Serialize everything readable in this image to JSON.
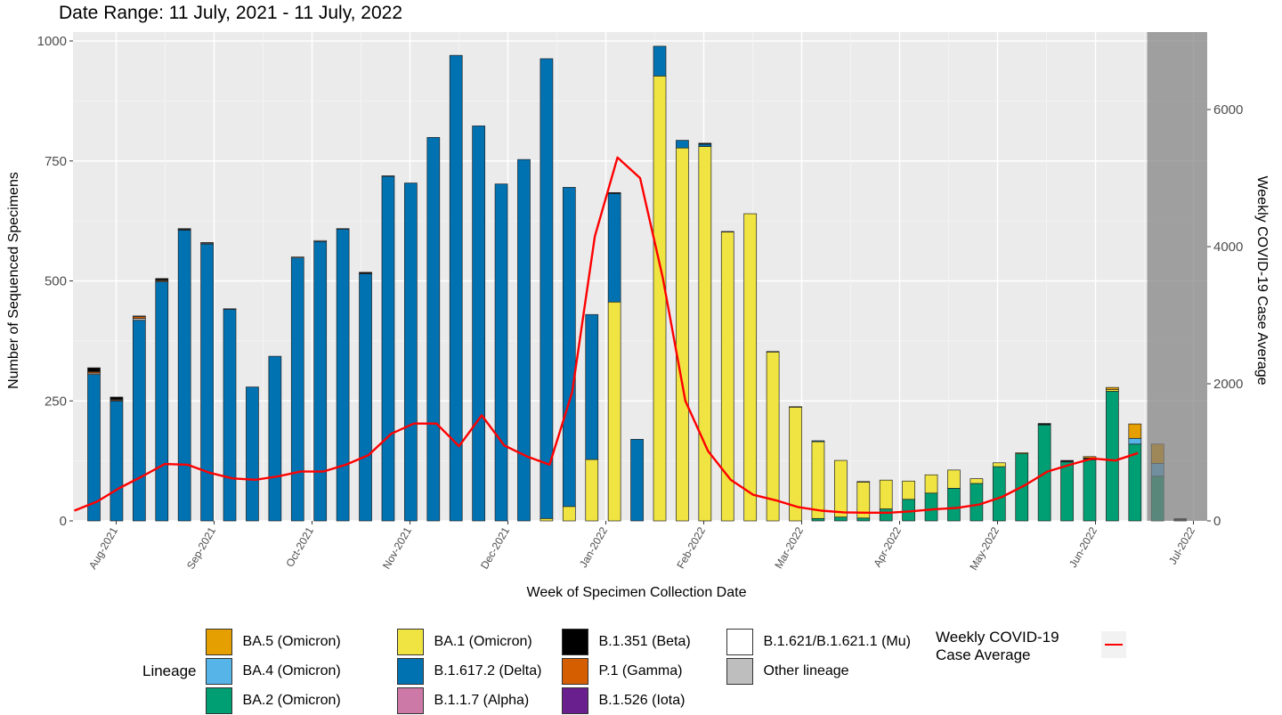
{
  "title": "Date Range: 11 July, 2021 - 11 July, 2022",
  "legend": {
    "title": "Lineage",
    "items": [
      {
        "name": "BA.5 (Omicron)",
        "color": "#E69F00"
      },
      {
        "name": "BA.1 (Omicron)",
        "color": "#F0E442"
      },
      {
        "name": "B.1.351 (Beta)",
        "color": "#000000"
      },
      {
        "name": "B.1.621/B.1.621.1 (Mu)",
        "color": "#FFFFFF"
      },
      {
        "name": "BA.4 (Omicron)",
        "color": "#56B4E9"
      },
      {
        "name": "B.1.617.2 (Delta)",
        "color": "#0072B2"
      },
      {
        "name": "P.1 (Gamma)",
        "color": "#D55E00"
      },
      {
        "name": "Other lineage",
        "color": "#BEBEBE"
      },
      {
        "name": "BA.2 (Omicron)",
        "color": "#009E73"
      },
      {
        "name": "B.1.1.7 (Alpha)",
        "color": "#CC79A7"
      },
      {
        "name": "B.1.526 (Iota)",
        "color": "#6A1F8E"
      }
    ],
    "line_label": "Weekly COVID-19\nCase Average",
    "line_color": "#FF0000"
  },
  "chart_data": {
    "type": "bar",
    "xlabel": "Week of Specimen Collection Date",
    "ylabel": "Number of Sequenced Specimens",
    "y2label": "Weekly COVID-19 Case Average",
    "ylim": [
      0,
      1000
    ],
    "y2lim": [
      0,
      7000
    ],
    "yticks": [
      0,
      250,
      500,
      750,
      1000
    ],
    "y2ticks": [
      0,
      2000,
      4000,
      6000
    ],
    "xticks": [
      "Aug-2021",
      "Sep-2021",
      "Oct-2021",
      "Nov-2021",
      "Dec-2021",
      "Jan-2022",
      "Feb-2022",
      "Mar-2022",
      "Apr-2022",
      "May-2022",
      "Jun-2022",
      "Jul-2022"
    ],
    "shaded_region": {
      "from_week": 47
    },
    "weeks": [
      {
        "BA.2": 0,
        "BA.1": 0,
        "Delta": 305,
        "Other": 3,
        "Gamma": 3,
        "Beta": 8
      },
      {
        "BA.2": 0,
        "BA.1": 0,
        "Delta": 250,
        "Other": 1,
        "Gamma": 2,
        "Beta": 5
      },
      {
        "BA.2": 0,
        "BA.1": 0,
        "Delta": 418,
        "Other": 4,
        "Gamma": 4,
        "Beta": 1
      },
      {
        "BA.2": 0,
        "BA.1": 0,
        "Delta": 498,
        "Other": 2,
        "Gamma": 2,
        "Beta": 3
      },
      {
        "BA.2": 0,
        "BA.1": 0,
        "Delta": 606,
        "Other": 1,
        "Gamma": 1,
        "Beta": 1
      },
      {
        "BA.2": 0,
        "BA.1": 0,
        "Delta": 577,
        "Other": 2,
        "Gamma": 1,
        "Beta": 0
      },
      {
        "BA.2": 0,
        "BA.1": 0,
        "Delta": 441,
        "Other": 1,
        "Gamma": 0,
        "Beta": 0
      },
      {
        "BA.2": 0,
        "BA.1": 0,
        "Delta": 279,
        "Other": 0,
        "Gamma": 0,
        "Beta": 0
      },
      {
        "BA.2": 0,
        "BA.1": 0,
        "Delta": 343,
        "Other": 0,
        "Gamma": 0,
        "Beta": 0
      },
      {
        "BA.2": 0,
        "BA.1": 0,
        "Delta": 548,
        "Other": 2,
        "Gamma": 0,
        "Beta": 0
      },
      {
        "BA.2": 0,
        "BA.1": 0,
        "Delta": 582,
        "Other": 2,
        "Gamma": 0,
        "Beta": 0
      },
      {
        "BA.2": 0,
        "BA.1": 0,
        "Delta": 608,
        "Other": 1,
        "Gamma": 0,
        "Beta": 0
      },
      {
        "BA.2": 0,
        "BA.1": 0,
        "Delta": 515,
        "Other": 1,
        "Gamma": 0,
        "Beta": 2
      },
      {
        "BA.2": 0,
        "BA.1": 0,
        "Delta": 718,
        "Other": 1,
        "Gamma": 0,
        "Beta": 0
      },
      {
        "BA.2": 0,
        "BA.1": 0,
        "Delta": 704,
        "Other": 0,
        "Gamma": 0,
        "Beta": 0
      },
      {
        "BA.2": 0,
        "BA.1": 0,
        "Delta": 799,
        "Other": 0,
        "Gamma": 0,
        "Beta": 0
      },
      {
        "BA.2": 0,
        "BA.1": 0,
        "Delta": 970,
        "Other": 0,
        "Gamma": 0,
        "Beta": 0
      },
      {
        "BA.2": 0,
        "BA.1": 0,
        "Delta": 823,
        "Other": 0,
        "Gamma": 0,
        "Beta": 0
      },
      {
        "BA.2": 0,
        "BA.1": 0,
        "Delta": 702,
        "Other": 0,
        "Gamma": 0,
        "Beta": 0
      },
      {
        "BA.2": 0,
        "BA.1": 0,
        "Delta": 753,
        "Other": 0,
        "Gamma": 0,
        "Beta": 0
      },
      {
        "BA.2": 0,
        "BA.1": 5,
        "Delta": 958,
        "Other": 0,
        "Gamma": 0,
        "Beta": 0
      },
      {
        "BA.2": 0,
        "BA.1": 30,
        "Delta": 665,
        "Other": 0,
        "Gamma": 0,
        "Beta": 0
      },
      {
        "BA.2": 0,
        "BA.1": 128,
        "Delta": 302,
        "Other": 0,
        "Gamma": 0,
        "Beta": 0
      },
      {
        "BA.2": 0,
        "BA.1": 456,
        "Delta": 226,
        "Other": 0,
        "Gamma": 0,
        "Beta": 2
      },
      {
        "BA.2": 0,
        "BA.1": 0,
        "Delta": 170,
        "Other": 0,
        "Gamma": 0,
        "Beta": 0
      },
      {
        "BA.2": 0,
        "BA.1": 927,
        "Delta": 62,
        "Other": 0,
        "Gamma": 0,
        "Beta": 0
      },
      {
        "BA.2": 0,
        "BA.1": 777,
        "Delta": 16,
        "Other": 0,
        "Gamma": 0,
        "Beta": 0
      },
      {
        "BA.2": 0,
        "BA.1": 780,
        "Delta": 5,
        "Other": 0,
        "Gamma": 0,
        "Beta": 2
      },
      {
        "BA.2": 0,
        "BA.1": 602,
        "Delta": 1,
        "Other": 0,
        "Gamma": 0,
        "Beta": 0
      },
      {
        "BA.2": 0,
        "BA.1": 640,
        "Delta": 0,
        "Other": 0,
        "Gamma": 0,
        "Beta": 0
      },
      {
        "BA.2": 0,
        "BA.1": 352,
        "Delta": 1,
        "Other": 0,
        "Gamma": 0,
        "Beta": 0
      },
      {
        "BA.2": 0,
        "BA.1": 237,
        "Delta": 1,
        "Other": 0,
        "Gamma": 0,
        "Beta": 0
      },
      {
        "BA.2": 5,
        "BA.1": 160,
        "Delta": 2,
        "Other": 0,
        "Gamma": 0,
        "Beta": 0
      },
      {
        "BA.2": 8,
        "BA.1": 118,
        "Delta": 0,
        "Other": 0,
        "Gamma": 0,
        "Beta": 0
      },
      {
        "BA.2": 6,
        "BA.1": 75,
        "Delta": 0,
        "Other": 0,
        "Gamma": 0,
        "Beta": 1
      },
      {
        "BA.2": 25,
        "BA.1": 60,
        "Delta": 0,
        "Other": 0,
        "Gamma": 0,
        "Beta": 0
      },
      {
        "BA.2": 45,
        "BA.1": 38,
        "Delta": 0,
        "Other": 0,
        "Gamma": 0,
        "Beta": 0
      },
      {
        "BA.2": 58,
        "BA.1": 38,
        "Delta": 0,
        "Other": 0,
        "Gamma": 0,
        "Beta": 0
      },
      {
        "BA.2": 68,
        "BA.1": 38,
        "Delta": 0,
        "Other": 0,
        "Gamma": 0,
        "Beta": 0
      },
      {
        "BA.2": 78,
        "BA.1": 10,
        "Delta": 0,
        "Other": 0,
        "Gamma": 0,
        "Beta": 0
      },
      {
        "BA.2": 113,
        "BA.1": 8,
        "Delta": 0,
        "Other": 0,
        "Gamma": 0,
        "Beta": 0
      },
      {
        "BA.2": 140,
        "BA.1": 2,
        "Delta": 0,
        "Other": 0,
        "Gamma": 0,
        "Beta": 0
      },
      {
        "BA.2": 200,
        "BA.1": 0,
        "Delta": 0,
        "Other": 1,
        "Gamma": 0,
        "Beta": 2
      },
      {
        "BA.2": 123,
        "BA.1": 0,
        "Delta": 0,
        "Other": 1,
        "Gamma": 0,
        "Beta": 2
      },
      {
        "BA.2": 127,
        "BA.1": 0,
        "Delta": 0,
        "Other": 2,
        "Gamma": 0,
        "Beta": 2,
        "BA.5": 3
      },
      {
        "BA.2": 270,
        "BA.1": 4,
        "Delta": 0,
        "Other": 0,
        "Gamma": 0,
        "Beta": 0,
        "BA.5": 4
      },
      {
        "BA.2": 160,
        "BA.1": 0,
        "Delta": 0,
        "Other": 0,
        "Gamma": 0,
        "Beta": 0,
        "BA.4": 12,
        "BA.5": 30
      },
      {
        "BA.2": 93,
        "BA.1": 0,
        "Delta": 0,
        "Other": 0,
        "Gamma": 0,
        "Beta": 0,
        "BA.4": 27,
        "BA.5": 40
      },
      {
        "BA.2": 0,
        "BA.1": 0,
        "Delta": 0,
        "Other": 0,
        "Gamma": 0,
        "Beta": 5
      }
    ],
    "case_average": [
      150,
      280,
      480,
      650,
      830,
      820,
      700,
      620,
      600,
      650,
      720,
      720,
      820,
      960,
      1270,
      1420,
      1420,
      1090,
      1540,
      1100,
      940,
      820,
      1880,
      4150,
      5300,
      5000,
      3550,
      1750,
      1020,
      600,
      380,
      300,
      200,
      150,
      125,
      120,
      120,
      140,
      170,
      190,
      240,
      350,
      520,
      720,
      820,
      910,
      880,
      990
    ]
  }
}
